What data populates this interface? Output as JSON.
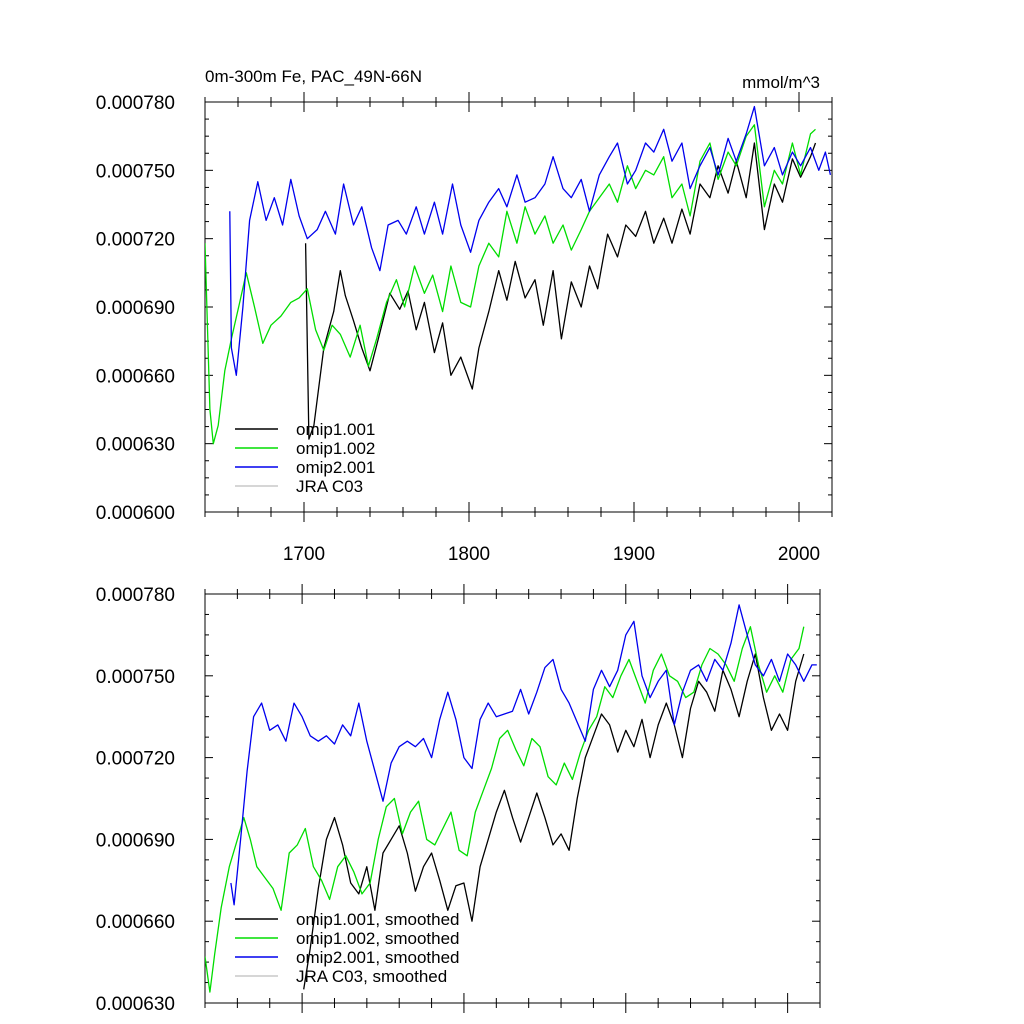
{
  "chart_data": [
    {
      "type": "line",
      "title": "0m-300m Fe, PAC_49N-66N",
      "units": "mmol/m^3",
      "xlabel": "",
      "ylabel": "",
      "xlim": [
        1640,
        2020
      ],
      "ylim": [
        0.0006,
        0.00078
      ],
      "x_ticks": [
        1700,
        1800,
        1900,
        2000
      ],
      "x_tick_labels": [
        "1700",
        "1800",
        "1900",
        "2000"
      ],
      "y_ticks": [
        0.0006,
        0.00063,
        0.00066,
        0.00069,
        0.00072,
        0.00075,
        0.00078
      ],
      "y_tick_labels": [
        "0.000600",
        "0.000630",
        "0.000660",
        "0.000690",
        "0.000720",
        "0.000750",
        "0.000780"
      ],
      "legend_position": "bottom-left",
      "series": [
        {
          "name": "omip1.001",
          "color": "#000000",
          "x": [
            1701,
            1703,
            1706,
            1712,
            1718,
            1722,
            1725,
            1730,
            1735,
            1740,
            1745,
            1752,
            1758,
            1763,
            1768,
            1773,
            1779,
            1784,
            1789,
            1795,
            1802,
            1806,
            1812,
            1818,
            1823,
            1828,
            1834,
            1840,
            1845,
            1851,
            1856,
            1862,
            1868,
            1873,
            1878,
            1884,
            1890,
            1895,
            1901,
            1907,
            1912,
            1918,
            1923,
            1929,
            1934,
            1940,
            1946,
            1951,
            1957,
            1962,
            1968,
            1973,
            1979,
            1985,
            1990,
            1996,
            2001,
            2007,
            2010
          ],
          "values": [
            0.000718,
            0.000632,
            0.000638,
            0.000672,
            0.000688,
            0.000706,
            0.000695,
            0.000684,
            0.000672,
            0.000662,
            0.000676,
            0.000696,
            0.000689,
            0.000697,
            0.00068,
            0.000692,
            0.00067,
            0.000683,
            0.00066,
            0.000668,
            0.000654,
            0.000672,
            0.000688,
            0.000706,
            0.000693,
            0.00071,
            0.000694,
            0.000702,
            0.000682,
            0.000706,
            0.000676,
            0.000701,
            0.00069,
            0.000708,
            0.000698,
            0.000722,
            0.000712,
            0.000726,
            0.000721,
            0.000732,
            0.000718,
            0.000729,
            0.000718,
            0.000733,
            0.000722,
            0.000744,
            0.000738,
            0.000752,
            0.00074,
            0.000754,
            0.000738,
            0.000762,
            0.000724,
            0.000744,
            0.000736,
            0.000755,
            0.000747,
            0.000756,
            0.000762
          ]
        },
        {
          "name": "omip1.002",
          "color": "#00dd00",
          "x": [
            1640,
            1643,
            1645,
            1648,
            1652,
            1656,
            1661,
            1665,
            1670,
            1675,
            1680,
            1686,
            1692,
            1697,
            1702,
            1707,
            1712,
            1717,
            1722,
            1728,
            1734,
            1739,
            1744,
            1750,
            1756,
            1761,
            1767,
            1773,
            1778,
            1784,
            1789,
            1795,
            1801,
            1806,
            1812,
            1818,
            1823,
            1829,
            1834,
            1840,
            1846,
            1851,
            1857,
            1862,
            1868,
            1873,
            1879,
            1885,
            1890,
            1896,
            1901,
            1907,
            1912,
            1918,
            1923,
            1929,
            1934,
            1940,
            1946,
            1951,
            1957,
            1962,
            1968,
            1973,
            1979,
            1985,
            1990,
            1996,
            2001,
            2007,
            2010
          ],
          "values": [
            0.000718,
            0.000645,
            0.00063,
            0.000638,
            0.000662,
            0.000676,
            0.000692,
            0.000705,
            0.00069,
            0.000674,
            0.000682,
            0.000686,
            0.000692,
            0.000694,
            0.000698,
            0.00068,
            0.000671,
            0.000682,
            0.000678,
            0.000668,
            0.000682,
            0.000664,
            0.000676,
            0.000692,
            0.000702,
            0.00069,
            0.000708,
            0.000696,
            0.000704,
            0.000688,
            0.000708,
            0.000692,
            0.00069,
            0.000708,
            0.000718,
            0.000712,
            0.000732,
            0.000718,
            0.000734,
            0.000722,
            0.00073,
            0.000718,
            0.000726,
            0.000715,
            0.000724,
            0.000732,
            0.000738,
            0.000744,
            0.000736,
            0.000752,
            0.000742,
            0.00075,
            0.000748,
            0.000756,
            0.000738,
            0.000744,
            0.00073,
            0.000754,
            0.000762,
            0.000746,
            0.000758,
            0.000752,
            0.000765,
            0.00077,
            0.000734,
            0.00075,
            0.000744,
            0.000762,
            0.000748,
            0.000766,
            0.000768
          ]
        },
        {
          "name": "omip2.001",
          "color": "#0000ee",
          "x": [
            1655,
            1656,
            1659,
            1663,
            1667,
            1672,
            1677,
            1682,
            1687,
            1692,
            1697,
            1702,
            1708,
            1713,
            1719,
            1724,
            1730,
            1735,
            1741,
            1746,
            1751,
            1757,
            1762,
            1768,
            1773,
            1779,
            1784,
            1790,
            1795,
            1801,
            1806,
            1812,
            1818,
            1823,
            1829,
            1834,
            1840,
            1846,
            1851,
            1857,
            1862,
            1868,
            1873,
            1879,
            1885,
            1890,
            1896,
            1901,
            1907,
            1912,
            1918,
            1923,
            1929,
            1934,
            1940,
            1946,
            1951,
            1957,
            1962,
            1968,
            1973,
            1979,
            1985,
            1990,
            1996,
            2001,
            2007,
            2012,
            2016,
            2019
          ],
          "values": [
            0.000732,
            0.000672,
            0.00066,
            0.00069,
            0.000728,
            0.000745,
            0.000728,
            0.000738,
            0.000726,
            0.000746,
            0.00073,
            0.00072,
            0.000724,
            0.000732,
            0.000722,
            0.000744,
            0.000726,
            0.000734,
            0.000716,
            0.000706,
            0.000726,
            0.000728,
            0.000722,
            0.000734,
            0.000722,
            0.000736,
            0.000722,
            0.000744,
            0.000726,
            0.000714,
            0.000728,
            0.000736,
            0.000742,
            0.000734,
            0.000748,
            0.000736,
            0.000738,
            0.000744,
            0.000756,
            0.000742,
            0.000738,
            0.000746,
            0.000732,
            0.000748,
            0.000756,
            0.000762,
            0.000744,
            0.00075,
            0.000762,
            0.000758,
            0.000768,
            0.000754,
            0.000762,
            0.000742,
            0.000752,
            0.00076,
            0.000748,
            0.000764,
            0.000754,
            0.000766,
            0.000778,
            0.000752,
            0.00076,
            0.000748,
            0.000758,
            0.000752,
            0.00076,
            0.00075,
            0.000758,
            0.000748
          ]
        },
        {
          "name": "JRA C03",
          "color": "#c8c8c8",
          "x": [],
          "values": []
        }
      ]
    },
    {
      "type": "line",
      "title": "",
      "units": "",
      "xlabel": "",
      "ylabel": "",
      "xlim": [
        1640,
        2020
      ],
      "ylim": [
        0.00063,
        0.00078
      ],
      "x_ticks": [
        1700,
        1800,
        1900,
        2000
      ],
      "x_tick_labels": [],
      "y_ticks": [
        0.00063,
        0.00066,
        0.00069,
        0.00072,
        0.00075,
        0.00078
      ],
      "y_tick_labels": [
        "0.000630",
        "0.000660",
        "0.000690",
        "0.000720",
        "0.000750",
        "0.000780"
      ],
      "legend_position": "bottom-left",
      "series": [
        {
          "name": "omip1.001, smoothed",
          "color": "#000000",
          "x": [
            1701,
            1705,
            1710,
            1715,
            1720,
            1725,
            1730,
            1735,
            1740,
            1745,
            1750,
            1755,
            1760,
            1765,
            1770,
            1775,
            1780,
            1785,
            1790,
            1795,
            1800,
            1805,
            1810,
            1815,
            1820,
            1825,
            1830,
            1835,
            1840,
            1845,
            1850,
            1855,
            1860,
            1865,
            1870,
            1875,
            1880,
            1885,
            1890,
            1895,
            1900,
            1905,
            1910,
            1915,
            1920,
            1925,
            1930,
            1935,
            1940,
            1945,
            1950,
            1955,
            1960,
            1965,
            1970,
            1975,
            1980,
            1985,
            1990,
            1995,
            2000,
            2005,
            2010
          ],
          "values": [
            0.000635,
            0.00065,
            0.000672,
            0.00069,
            0.000698,
            0.000688,
            0.000674,
            0.00067,
            0.00068,
            0.000664,
            0.000685,
            0.00069,
            0.000695,
            0.000685,
            0.000671,
            0.00068,
            0.000685,
            0.000675,
            0.000664,
            0.000673,
            0.000674,
            0.00066,
            0.00068,
            0.00069,
            0.0007,
            0.000708,
            0.000698,
            0.000689,
            0.000698,
            0.000707,
            0.000698,
            0.000688,
            0.000692,
            0.000686,
            0.000705,
            0.00072,
            0.000728,
            0.000736,
            0.000732,
            0.000722,
            0.00073,
            0.000724,
            0.000734,
            0.00072,
            0.000732,
            0.00074,
            0.000732,
            0.00072,
            0.000738,
            0.000748,
            0.000744,
            0.000737,
            0.000752,
            0.000745,
            0.000735,
            0.000748,
            0.000758,
            0.000742,
            0.00073,
            0.000736,
            0.00073,
            0.000748,
            0.000758
          ]
        },
        {
          "name": "omip1.002, smoothed",
          "color": "#00dd00",
          "x": [
            1640,
            1643,
            1646,
            1650,
            1655,
            1660,
            1664,
            1668,
            1672,
            1677,
            1682,
            1687,
            1692,
            1697,
            1702,
            1707,
            1712,
            1717,
            1722,
            1727,
            1732,
            1737,
            1742,
            1747,
            1752,
            1757,
            1762,
            1767,
            1772,
            1777,
            1782,
            1787,
            1792,
            1797,
            1802,
            1807,
            1812,
            1817,
            1822,
            1827,
            1832,
            1837,
            1842,
            1847,
            1852,
            1857,
            1862,
            1867,
            1872,
            1877,
            1882,
            1887,
            1892,
            1897,
            1902,
            1907,
            1912,
            1917,
            1922,
            1927,
            1932,
            1937,
            1942,
            1947,
            1952,
            1957,
            1962,
            1967,
            1972,
            1977,
            1982,
            1987,
            1992,
            1997,
            2002,
            2007,
            2010
          ],
          "values": [
            0.000647,
            0.000634,
            0.000648,
            0.000665,
            0.00068,
            0.00069,
            0.000698,
            0.00069,
            0.00068,
            0.000676,
            0.000672,
            0.000664,
            0.000685,
            0.000688,
            0.000694,
            0.00068,
            0.000675,
            0.000668,
            0.00068,
            0.000684,
            0.000678,
            0.00067,
            0.000674,
            0.00069,
            0.000702,
            0.000705,
            0.000692,
            0.0007,
            0.000704,
            0.00069,
            0.000688,
            0.000694,
            0.0007,
            0.000686,
            0.000684,
            0.0007,
            0.000708,
            0.000716,
            0.000727,
            0.00073,
            0.000723,
            0.000717,
            0.000727,
            0.000724,
            0.000713,
            0.00071,
            0.000718,
            0.000712,
            0.000722,
            0.00073,
            0.000735,
            0.000746,
            0.000742,
            0.00075,
            0.000756,
            0.000748,
            0.00074,
            0.000752,
            0.000758,
            0.00075,
            0.000748,
            0.000742,
            0.000744,
            0.000754,
            0.00076,
            0.000758,
            0.000754,
            0.000748,
            0.00076,
            0.000768,
            0.000754,
            0.000744,
            0.00075,
            0.000744,
            0.000756,
            0.00076,
            0.000768
          ]
        },
        {
          "name": "omip2.001, smoothed",
          "color": "#0000ee",
          "x": [
            1656,
            1658,
            1662,
            1666,
            1670,
            1675,
            1680,
            1685,
            1690,
            1695,
            1700,
            1705,
            1710,
            1715,
            1720,
            1725,
            1730,
            1735,
            1740,
            1745,
            1750,
            1755,
            1760,
            1765,
            1770,
            1775,
            1780,
            1785,
            1790,
            1795,
            1800,
            1805,
            1810,
            1815,
            1820,
            1825,
            1830,
            1835,
            1840,
            1845,
            1850,
            1855,
            1860,
            1865,
            1870,
            1875,
            1880,
            1885,
            1890,
            1895,
            1900,
            1905,
            1910,
            1915,
            1920,
            1925,
            1930,
            1935,
            1940,
            1945,
            1950,
            1955,
            1960,
            1965,
            1970,
            1975,
            1980,
            1985,
            1990,
            1995,
            2000,
            2005,
            2010,
            2015,
            2018
          ],
          "values": [
            0.000674,
            0.000666,
            0.00069,
            0.000715,
            0.000735,
            0.00074,
            0.00073,
            0.000732,
            0.000726,
            0.00074,
            0.000735,
            0.000728,
            0.000726,
            0.000728,
            0.000725,
            0.000732,
            0.000728,
            0.00074,
            0.000726,
            0.000715,
            0.000704,
            0.000718,
            0.000724,
            0.000726,
            0.000724,
            0.000727,
            0.00072,
            0.000734,
            0.000744,
            0.000734,
            0.00072,
            0.000716,
            0.000734,
            0.00074,
            0.000735,
            0.000736,
            0.000737,
            0.000745,
            0.000736,
            0.000744,
            0.000753,
            0.000756,
            0.000745,
            0.00074,
            0.000733,
            0.000726,
            0.000745,
            0.000752,
            0.000746,
            0.000752,
            0.000765,
            0.00077,
            0.00075,
            0.000742,
            0.000748,
            0.000752,
            0.000732,
            0.000744,
            0.000752,
            0.000754,
            0.000748,
            0.000756,
            0.000752,
            0.000762,
            0.000776,
            0.000765,
            0.000754,
            0.00075,
            0.000756,
            0.000748,
            0.000758,
            0.000754,
            0.000748,
            0.000754,
            0.000754
          ]
        },
        {
          "name": "JRA C03, smoothed",
          "color": "#c8c8c8",
          "x": [],
          "values": []
        }
      ]
    }
  ]
}
